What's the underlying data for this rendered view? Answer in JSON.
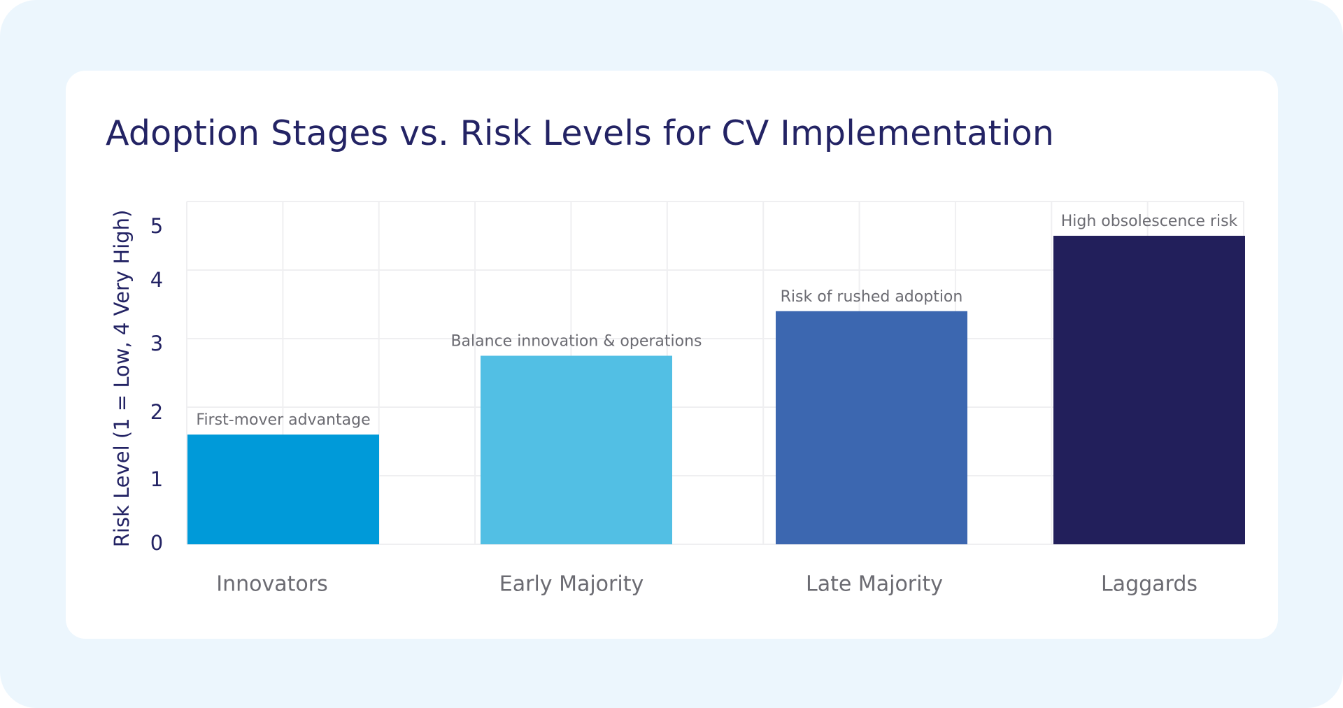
{
  "chart_data": {
    "type": "bar",
    "title": "Adoption Stages vs. Risk Levels for CV Implementation",
    "xlabel": "",
    "ylabel": "Risk Level (1 = Low, 4 Very High)",
    "categories": [
      "Innovators",
      "Early Majority",
      "Late Majority",
      "Laggards"
    ],
    "values": [
      1.6,
      2.75,
      3.4,
      4.5
    ],
    "annotations": [
      "First-mover advantage",
      "Balance innovation & operations",
      "Risk of rushed adoption",
      "High obsolescence risk"
    ],
    "colors": [
      "#009ad9",
      "#52bfe4",
      "#3c67b0",
      "#221f5b"
    ],
    "yticks": [
      0,
      1,
      2,
      3,
      4,
      5
    ],
    "ylim": [
      0,
      5
    ],
    "grid": true,
    "legend": "none"
  }
}
